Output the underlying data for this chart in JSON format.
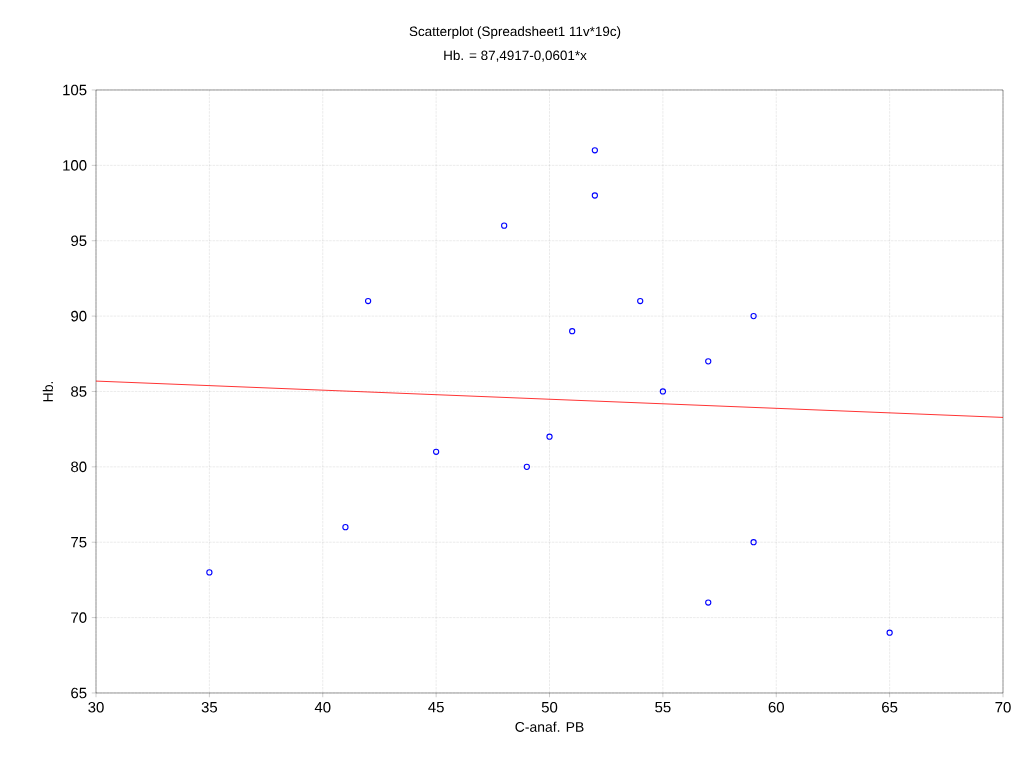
{
  "chart_data": {
    "type": "scatter",
    "title": "Scatterplot (Spreadsheet1 11v*19c)",
    "subtitle": "Hb. = 87,4917-0,0601*x",
    "xlabel": "C-anaf. PB",
    "ylabel": "Hb.",
    "xlim": [
      30,
      70
    ],
    "ylim": [
      65,
      105
    ],
    "xticks": [
      30,
      35,
      40,
      45,
      50,
      55,
      60,
      65,
      70
    ],
    "yticks": [
      65,
      70,
      75,
      80,
      85,
      90,
      95,
      100,
      105
    ],
    "grid": true,
    "marker": "circle",
    "series": [
      {
        "color": "#0000ff",
        "x": [
          35,
          41,
          42,
          45,
          48,
          49,
          50,
          51,
          52,
          52,
          54,
          55,
          57,
          57,
          59,
          59,
          65
        ],
        "values": [
          73,
          76,
          91,
          81,
          96,
          80,
          82,
          89,
          101,
          98,
          91,
          85,
          87,
          71,
          90,
          75,
          69
        ]
      },
      {
        "type": "line",
        "color": "#ff0000",
        "marker": "none",
        "line_style": "solid",
        "x": [
          30,
          70
        ],
        "values": [
          85.69,
          83.28
        ]
      }
    ]
  }
}
